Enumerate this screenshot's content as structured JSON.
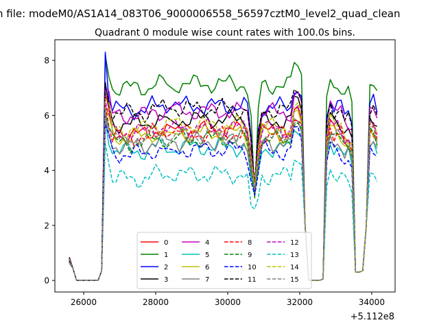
{
  "chart_data": {
    "type": "line",
    "suptitle": "n file: modeM0/AS1A14_083T06_9000006558_56597cztM0_level2_quad_clean",
    "title": "Quadrant 0 module wise count rates with 100.0s bins.",
    "xlabel": "",
    "ylabel": "",
    "x_offset_label": "+5.112e8",
    "xlim": [
      25200,
      34650
    ],
    "ylim": [
      -0.42,
      8.75
    ],
    "xticks": [
      26000,
      28000,
      30000,
      32000,
      34000
    ],
    "yticks": [
      0,
      2,
      4,
      6,
      8
    ],
    "grid": false,
    "legend": {
      "placement": "lower center",
      "ncol": 4
    },
    "x_start": 25600,
    "x_step": 100,
    "gap": {
      "after_index": 27,
      "resume_x": 28550
    },
    "series": [
      {
        "name": "0",
        "color": "#ff0000",
        "dash": "solid",
        "base": 5.3,
        "peak": 6.8,
        "phase": 0.3,
        "dip": 3.3
      },
      {
        "name": "1",
        "color": "#008000",
        "dash": "solid",
        "base": 7.0,
        "peak": 8.2,
        "phase": 1.1,
        "dip": 3.0,
        "last": 6.9
      },
      {
        "name": "2",
        "color": "#0000ff",
        "dash": "solid",
        "base": 6.2,
        "peak": 8.3,
        "phase": 2.0,
        "dip": 3.2,
        "last": 6.1
      },
      {
        "name": "3",
        "color": "#000000",
        "dash": "solid",
        "base": 5.7,
        "peak": 7.2,
        "phase": 0.7,
        "dip": 3.4
      },
      {
        "name": "4",
        "color": "#bf00bf",
        "dash": "solid",
        "base": 6.0,
        "peak": 7.0,
        "phase": 2.6,
        "dip": 3.3
      },
      {
        "name": "5",
        "color": "#00bfbf",
        "dash": "solid",
        "base": 4.7,
        "peak": 5.8,
        "phase": 1.5,
        "dip": 3.3
      },
      {
        "name": "6",
        "color": "#bfbf00",
        "dash": "solid",
        "base": 5.2,
        "peak": 6.3,
        "phase": 3.1,
        "dip": 3.5
      },
      {
        "name": "7",
        "color": "#808080",
        "dash": "solid",
        "base": 4.9,
        "peak": 6.0,
        "phase": 0.9,
        "dip": 3.4
      },
      {
        "name": "8",
        "color": "#ff0000",
        "dash": "dashed",
        "base": 5.2,
        "peak": 6.4,
        "phase": 1.9,
        "dip": 3.3
      },
      {
        "name": "9",
        "color": "#008000",
        "dash": "dashed",
        "base": 5.0,
        "peak": 6.1,
        "phase": 2.3,
        "dip": 3.1
      },
      {
        "name": "10",
        "color": "#0000ff",
        "dash": "dashed",
        "base": 4.6,
        "peak": 5.7,
        "phase": 0.5,
        "dip": 3.1
      },
      {
        "name": "11",
        "color": "#000000",
        "dash": "dashed",
        "base": 6.1,
        "peak": 7.1,
        "phase": 1.3,
        "dip": 3.5
      },
      {
        "name": "12",
        "color": "#bf00bf",
        "dash": "dashed",
        "base": 5.4,
        "peak": 6.5,
        "phase": 2.8,
        "dip": 3.3
      },
      {
        "name": "13",
        "color": "#00bfbf",
        "dash": "dashed",
        "base": 3.7,
        "peak": 5.0,
        "phase": 1.7,
        "dip": 2.6
      },
      {
        "name": "14",
        "color": "#bfbf00",
        "dash": "dashed",
        "base": 5.5,
        "peak": 6.6,
        "phase": 0.1,
        "dip": 3.4
      },
      {
        "name": "15",
        "color": "#808080",
        "dash": "dashed",
        "base": 5.1,
        "peak": 6.2,
        "phase": 2.2,
        "dip": 3.3
      }
    ]
  }
}
